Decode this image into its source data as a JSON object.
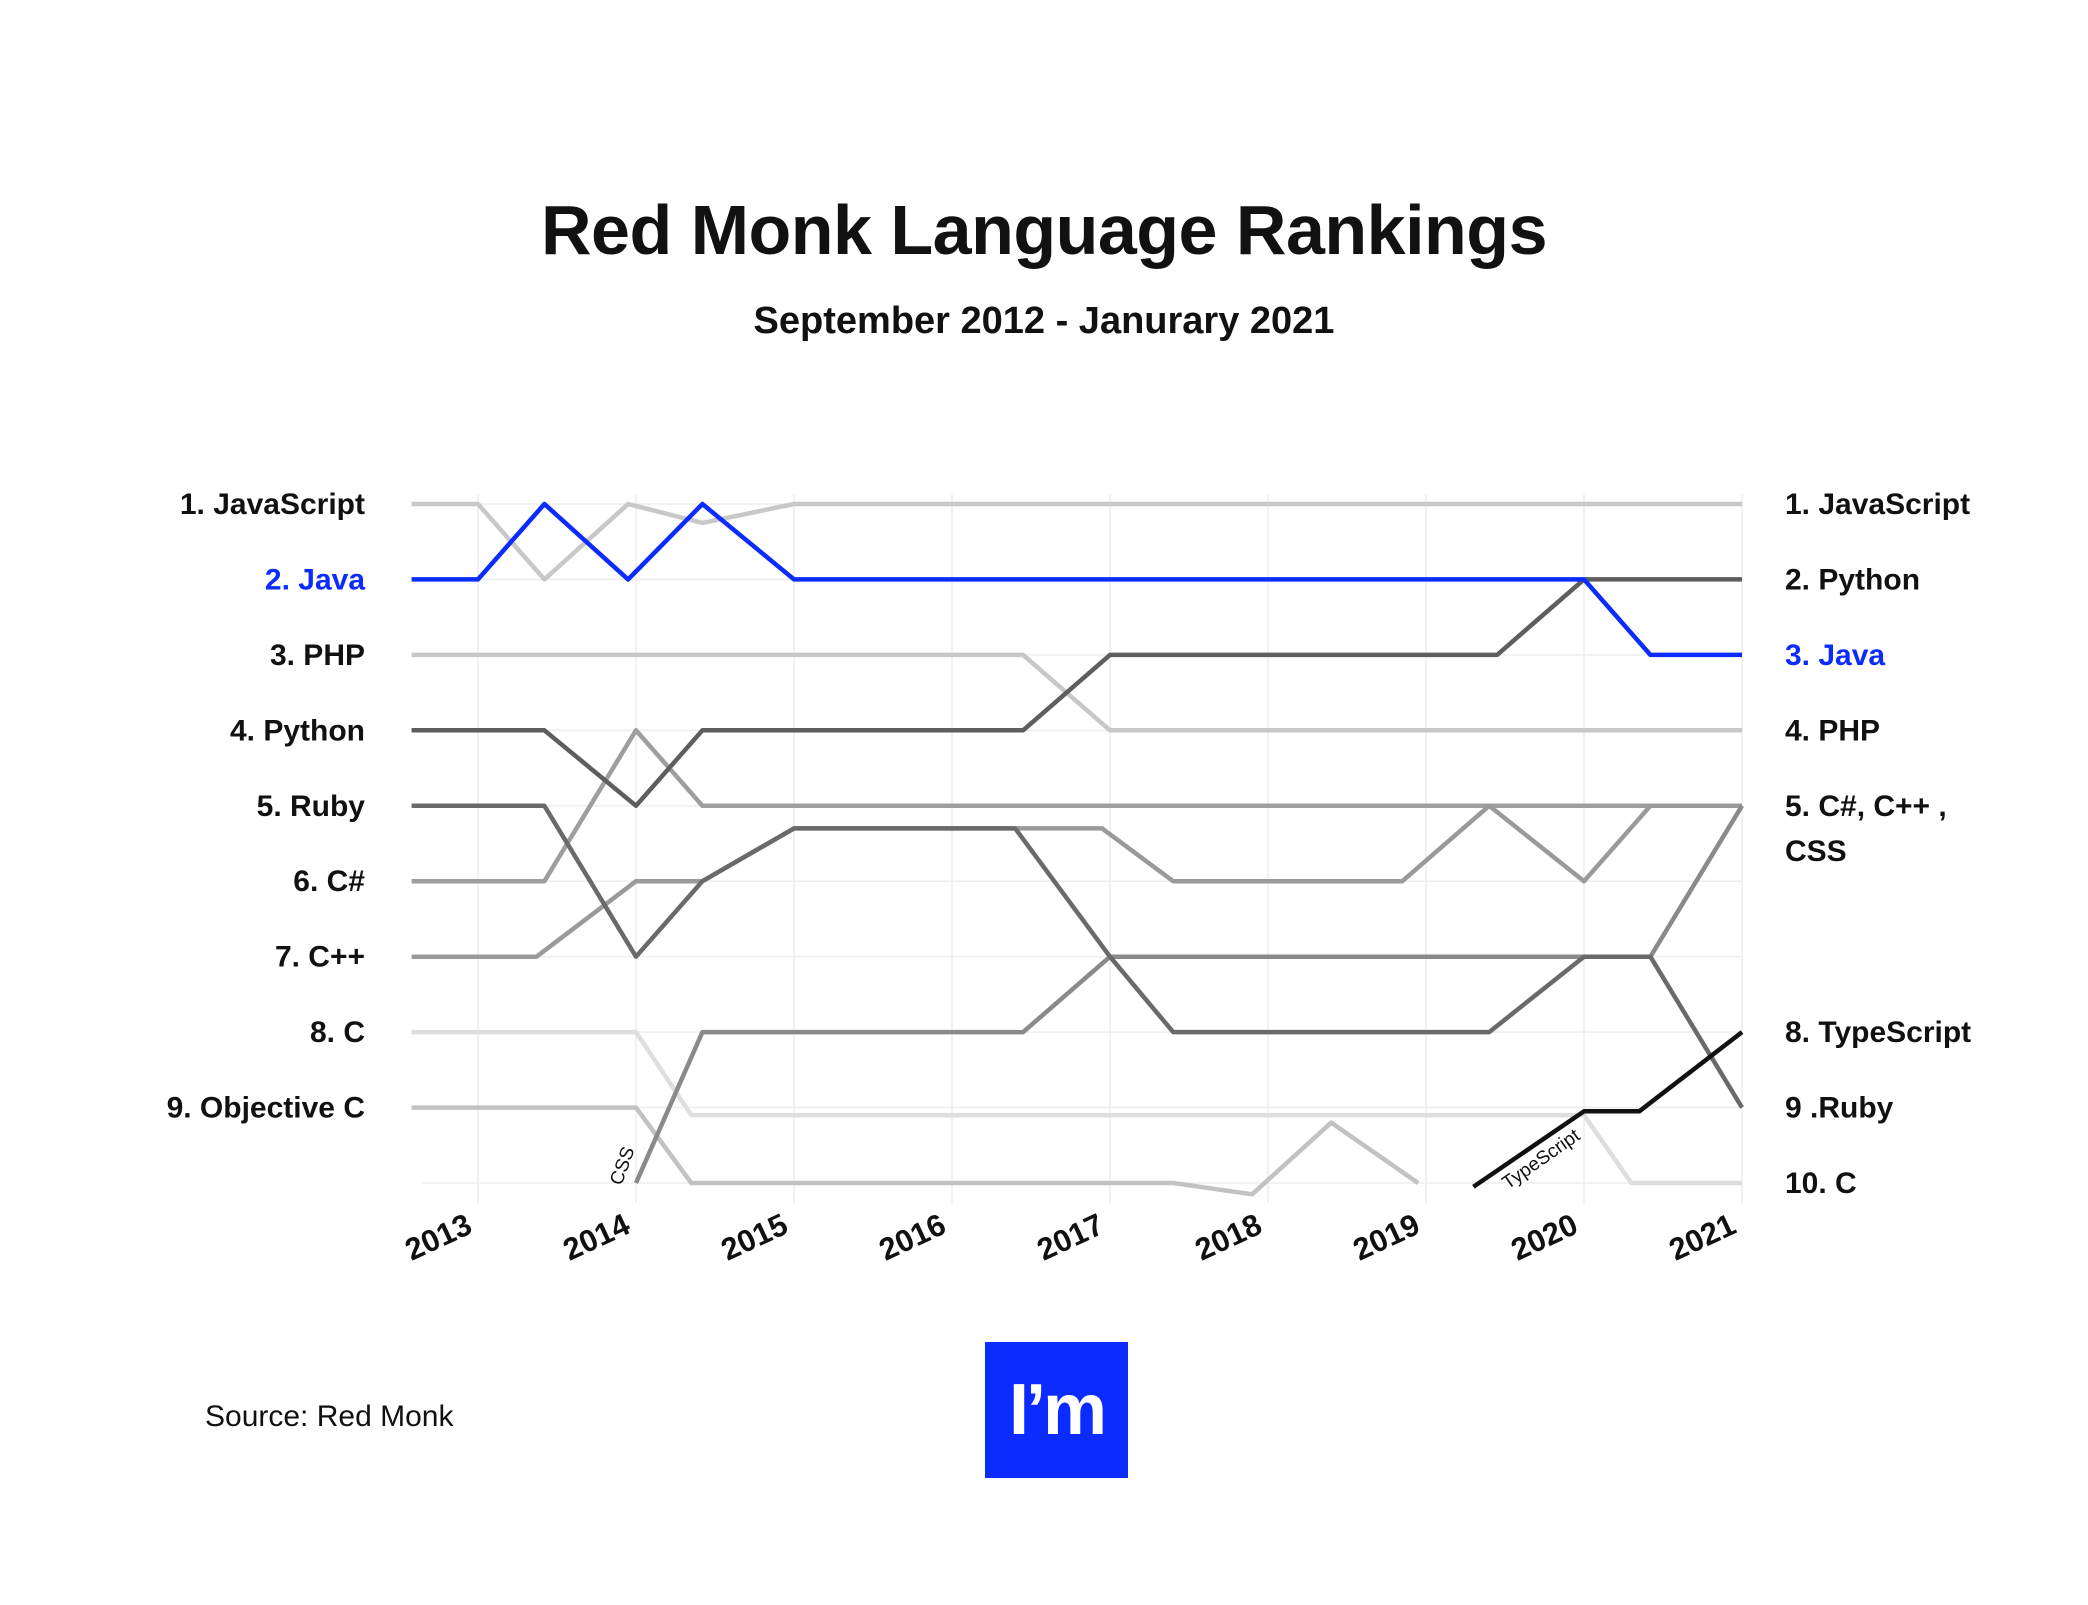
{
  "title": "Red Monk Language Rankings",
  "subtitle": "September 2012 - Janurary 2021",
  "source": "Source: Red Monk",
  "logo_text": "I’m",
  "colors": {
    "java": "#0b2bff",
    "text": "#111111",
    "grid": "#eeeeee"
  },
  "chart_data": {
    "type": "line",
    "title": "Red Monk Language Rankings",
    "subtitle": "September 2012 - Janurary 2021",
    "x_ticks": [
      "2013",
      "2014",
      "2015",
      "2016",
      "2017",
      "2018",
      "2019",
      "2020",
      "2021"
    ],
    "xlim": [
      2012.58,
      2021.0
    ],
    "ylim": [
      1,
      10
    ],
    "y_inverted": true,
    "grid": true,
    "left_labels": [
      {
        "rank": 1,
        "text": "1.  JavaScript"
      },
      {
        "rank": 2,
        "text": "2. Java",
        "highlight": true
      },
      {
        "rank": 3,
        "text": "3. PHP"
      },
      {
        "rank": 4,
        "text": "4. Python"
      },
      {
        "rank": 5,
        "text": "5. Ruby"
      },
      {
        "rank": 6,
        "text": "6. C#"
      },
      {
        "rank": 7,
        "text": "7. C++"
      },
      {
        "rank": 8,
        "text": "8. C"
      },
      {
        "rank": 9,
        "text": "9. Objective C"
      }
    ],
    "right_labels": [
      {
        "rank": 1,
        "lines": [
          "1.  JavaScript"
        ]
      },
      {
        "rank": 2,
        "lines": [
          "2. Python"
        ]
      },
      {
        "rank": 3,
        "lines": [
          "3. Java"
        ],
        "highlight": true
      },
      {
        "rank": 4,
        "lines": [
          "4. PHP"
        ]
      },
      {
        "rank": 5,
        "lines": [
          "5. C#, C++ ,",
          "CSS"
        ]
      },
      {
        "rank": 8,
        "lines": [
          "8. TypeScript"
        ]
      },
      {
        "rank": 9,
        "lines": [
          "9 .Ruby"
        ]
      },
      {
        "rank": 10,
        "lines": [
          "10. C"
        ]
      }
    ],
    "inline_labels": [
      {
        "text": "CSS",
        "x": 2013.95,
        "y": 9.8,
        "angle": -70
      },
      {
        "text": "TypeScript",
        "x": 2019.75,
        "y": 9.75,
        "angle": -35
      }
    ],
    "series": [
      {
        "key": "javascript",
        "color": "#c8c8c8",
        "points": [
          [
            2012.58,
            1
          ],
          [
            2013.0,
            1
          ],
          [
            2013.42,
            2
          ],
          [
            2013.95,
            1
          ],
          [
            2014.42,
            1.25
          ],
          [
            2015.0,
            1
          ],
          [
            2021.0,
            1
          ]
        ]
      },
      {
        "key": "php",
        "color": "#c8c8c8",
        "points": [
          [
            2012.58,
            3
          ],
          [
            2016.45,
            3
          ],
          [
            2017.0,
            4
          ],
          [
            2021.0,
            4
          ]
        ]
      },
      {
        "key": "c",
        "color": "#dedede",
        "points": [
          [
            2012.58,
            8
          ],
          [
            2014.0,
            8
          ],
          [
            2014.35,
            9.1
          ],
          [
            2020.0,
            9.1
          ],
          [
            2020.3,
            10
          ],
          [
            2021.0,
            10
          ]
        ]
      },
      {
        "key": "objective-c",
        "color": "#c2c2c2",
        "points": [
          [
            2012.58,
            9
          ],
          [
            2014.0,
            9
          ],
          [
            2014.35,
            10
          ],
          [
            2017.4,
            10
          ],
          [
            2017.9,
            10.15
          ],
          [
            2018.4,
            9.2
          ],
          [
            2018.95,
            10
          ]
        ]
      },
      {
        "key": "c-sharp",
        "color": "#9e9e9e",
        "points": [
          [
            2012.58,
            6
          ],
          [
            2013.42,
            6
          ],
          [
            2014.0,
            4
          ],
          [
            2014.42,
            5
          ],
          [
            2016.0,
            5
          ],
          [
            2021.0,
            5
          ]
        ]
      },
      {
        "key": "c-plus-plus",
        "color": "#9a9a9a",
        "points": [
          [
            2012.58,
            7
          ],
          [
            2013.37,
            7
          ],
          [
            2014.0,
            6
          ],
          [
            2014.42,
            6
          ],
          [
            2015.0,
            5.3
          ],
          [
            2016.95,
            5.3
          ],
          [
            2017.4,
            6
          ],
          [
            2018.85,
            6
          ],
          [
            2019.4,
            5
          ],
          [
            2020.0,
            6
          ],
          [
            2020.42,
            5
          ],
          [
            2021.0,
            5
          ]
        ]
      },
      {
        "key": "css",
        "color": "#8a8a8a",
        "points": [
          [
            2014.0,
            10
          ],
          [
            2014.42,
            8
          ],
          [
            2016.45,
            8
          ],
          [
            2017.0,
            7
          ],
          [
            2020.42,
            7
          ],
          [
            2021.0,
            5
          ]
        ]
      },
      {
        "key": "ruby",
        "color": "#6a6a6a",
        "points": [
          [
            2012.58,
            5
          ],
          [
            2013.42,
            5
          ],
          [
            2014.0,
            7
          ],
          [
            2014.42,
            6
          ],
          [
            2015.0,
            5.3
          ],
          [
            2016.4,
            5.3
          ],
          [
            2017.0,
            7
          ],
          [
            2017.4,
            8
          ],
          [
            2019.4,
            8
          ],
          [
            2020.0,
            7
          ],
          [
            2020.42,
            7
          ],
          [
            2021.0,
            9
          ]
        ]
      },
      {
        "key": "python",
        "color": "#5e5e5e",
        "points": [
          [
            2012.58,
            4
          ],
          [
            2013.42,
            4
          ],
          [
            2014.0,
            5
          ],
          [
            2014.42,
            4
          ],
          [
            2016.45,
            4
          ],
          [
            2017.0,
            3
          ],
          [
            2019.45,
            3
          ],
          [
            2020.0,
            2
          ],
          [
            2021.0,
            2
          ]
        ]
      },
      {
        "key": "typescript",
        "color": "#111111",
        "points": [
          [
            2019.3,
            10.05
          ],
          [
            2020.0,
            9.05
          ],
          [
            2020.35,
            9.05
          ],
          [
            2021.0,
            8
          ]
        ]
      },
      {
        "key": "java",
        "color": "#0b2bff",
        "points": [
          [
            2012.58,
            2
          ],
          [
            2013.0,
            2
          ],
          [
            2013.42,
            1
          ],
          [
            2013.95,
            2
          ],
          [
            2014.42,
            1
          ],
          [
            2015.0,
            2
          ],
          [
            2020.0,
            2
          ],
          [
            2020.42,
            3
          ],
          [
            2021.0,
            3
          ]
        ]
      }
    ]
  }
}
